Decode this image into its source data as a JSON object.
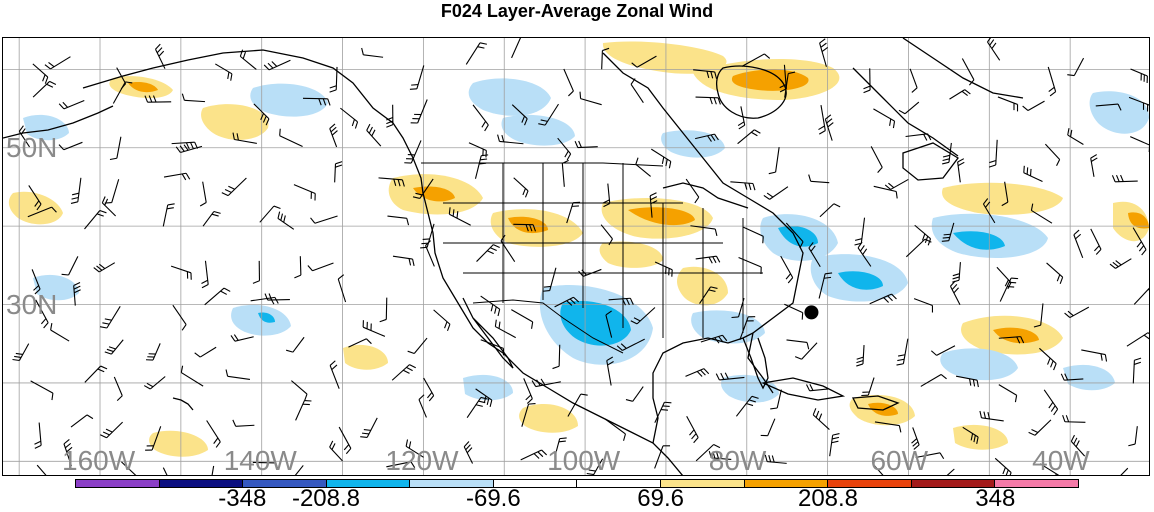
{
  "title": "F024 Layer-Average Zonal Wind",
  "lat_labels": [
    {
      "id": "lat-50n",
      "text": "50N",
      "lat": 50
    },
    {
      "id": "lat-30n",
      "text": "30N",
      "lat": 30
    }
  ],
  "lon_labels": [
    {
      "id": "lon-160w",
      "text": "160W",
      "lon": -160
    },
    {
      "id": "lon-140w",
      "text": "140W",
      "lon": -140
    },
    {
      "id": "lon-120w",
      "text": "120W",
      "lon": -120
    },
    {
      "id": "lon-100w",
      "text": "100W",
      "lon": -100
    },
    {
      "id": "lon-80w",
      "text": "80W",
      "lon": -80
    },
    {
      "id": "lon-60w",
      "text": "60W",
      "lon": -60
    },
    {
      "id": "lon-40w",
      "text": "40W",
      "lon": -40
    }
  ],
  "colorbar": {
    "colors": [
      "#8b3fc7",
      "#0b0f80",
      "#3558c0",
      "#10b5ec",
      "#b9dff7",
      "#ffffff",
      "#ffffff",
      "#fbe38a",
      "#f5a100",
      "#e8430c",
      "#a31a1a",
      "#f57aa8"
    ],
    "labels": [
      {
        "text": "-348",
        "boundary": 2
      },
      {
        "text": "-208.8",
        "boundary": 3
      },
      {
        "text": "-69.6",
        "boundary": 5
      },
      {
        "text": "69.6",
        "boundary": 7
      },
      {
        "text": "208.8",
        "boundary": 9
      },
      {
        "text": "348",
        "boundary": 11
      }
    ]
  },
  "marker": {
    "label": "",
    "lon": -72,
    "lat": 29
  },
  "grid_color": "#a0a0a0",
  "coast_color": "#000000"
}
